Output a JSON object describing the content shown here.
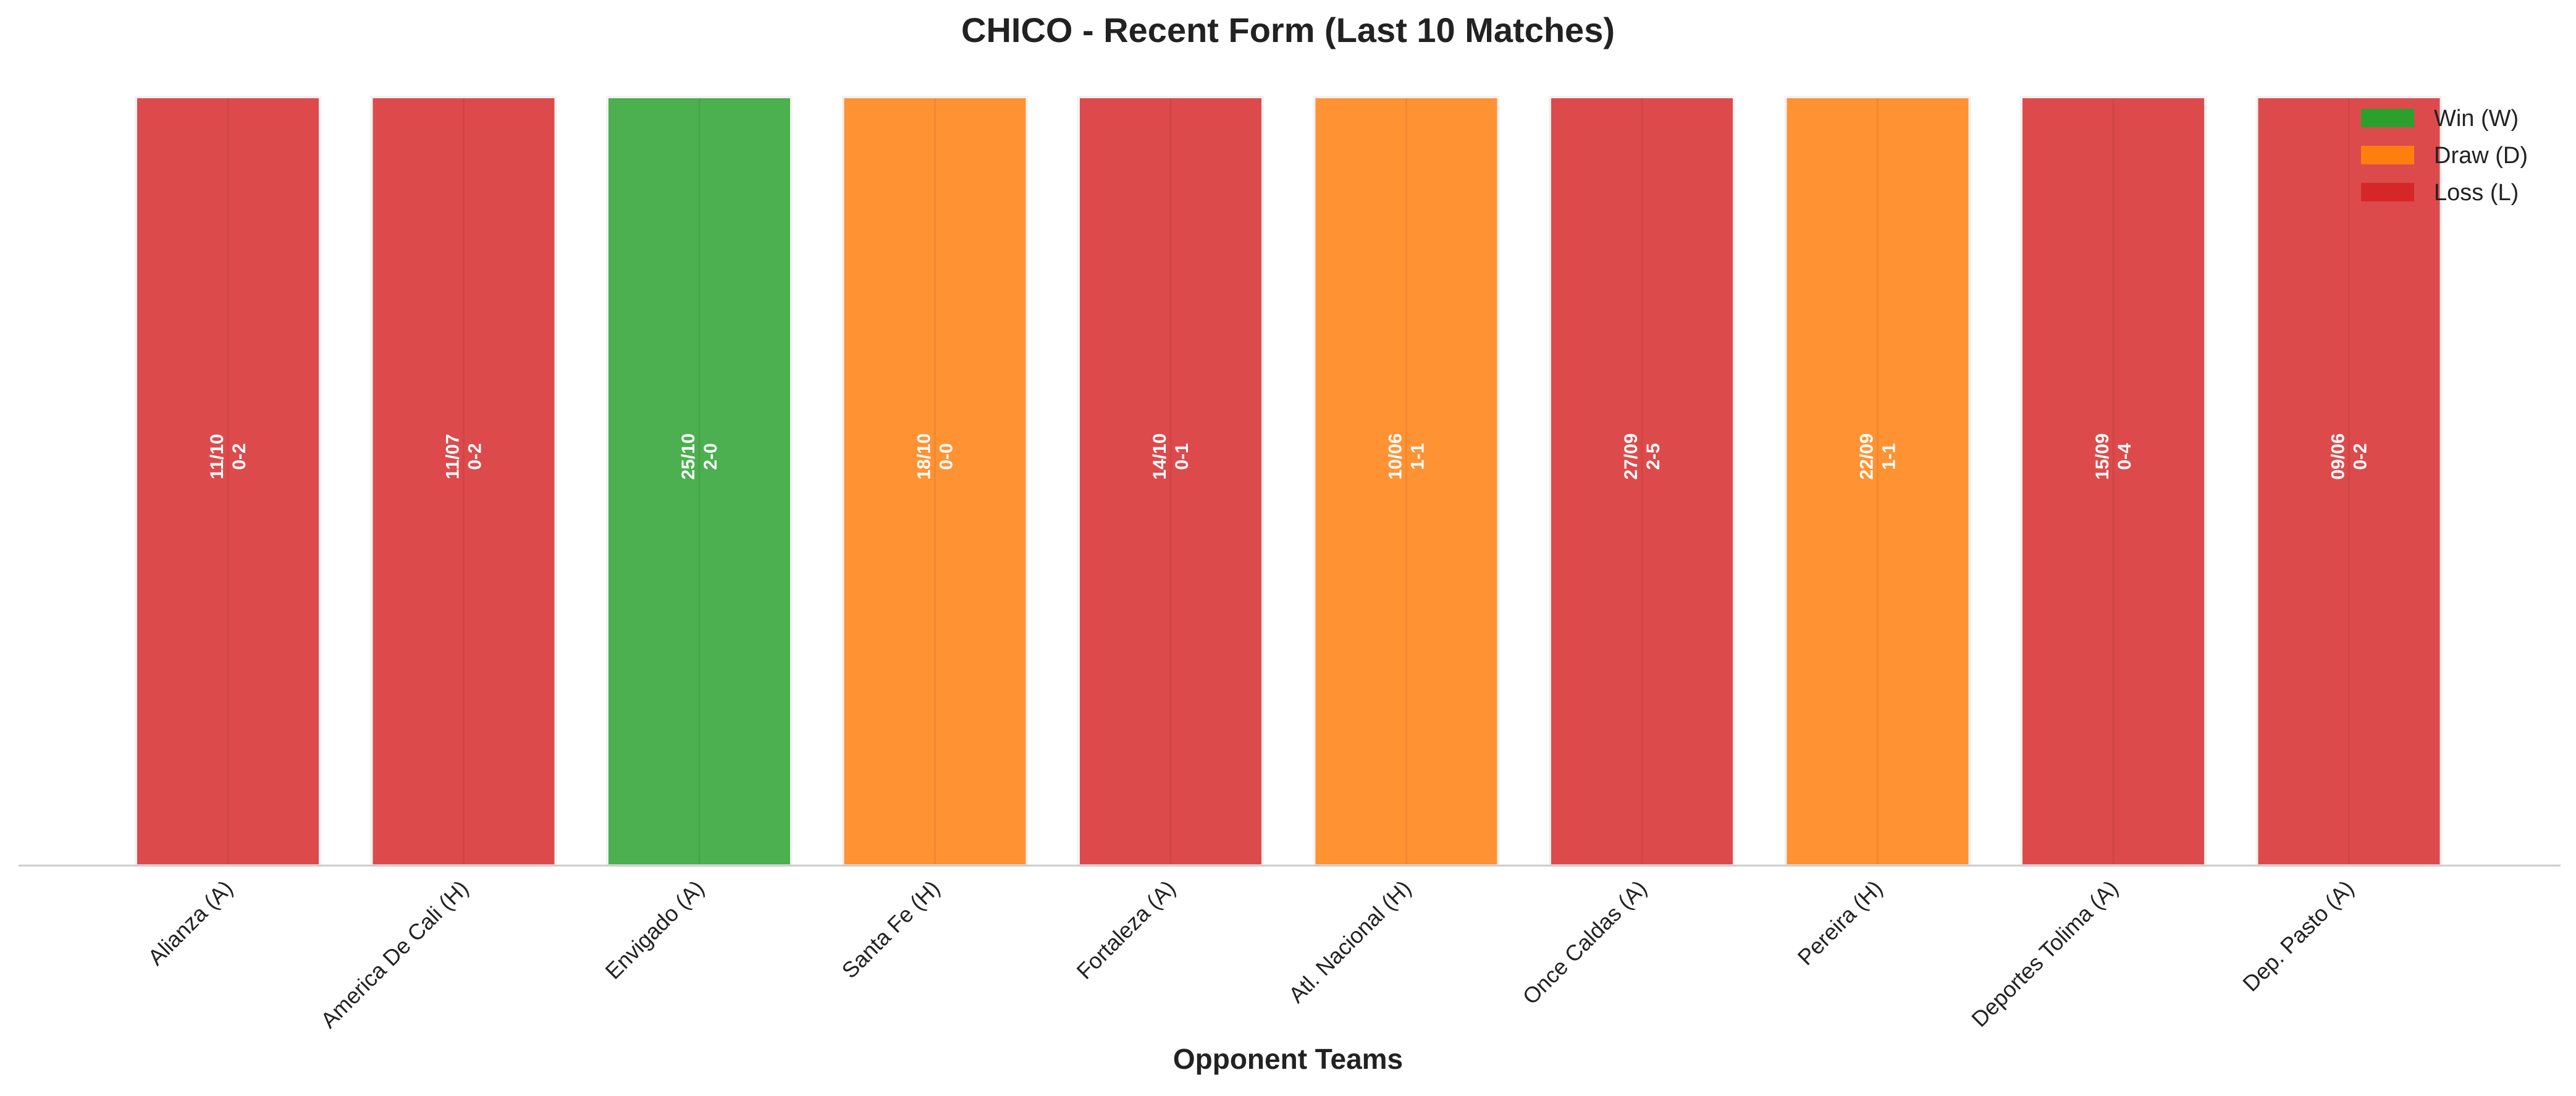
{
  "chart_data": {
    "type": "bar",
    "title": "CHICO - Recent Form (Last 10 Matches)",
    "xlabel": "Opponent Teams",
    "ylabel": "",
    "categories": [
      "Alianza (A)",
      "America De Cali (H)",
      "Envigado (A)",
      "Santa Fe (H)",
      "Fortaleza (A)",
      "Atl. Nacional (H)",
      "Once Caldas (A)",
      "Pereira (H)",
      "Deportes Tolima (A)",
      "Dep. Pasto (A)"
    ],
    "values": [
      1,
      1,
      1,
      1,
      1,
      1,
      1,
      1,
      1,
      1
    ],
    "results": [
      "L",
      "L",
      "W",
      "D",
      "L",
      "D",
      "L",
      "D",
      "L",
      "L"
    ],
    "dates": [
      "11/10",
      "11/07",
      "25/10",
      "18/10",
      "14/10",
      "10/06",
      "27/09",
      "22/09",
      "15/09",
      "09/06"
    ],
    "scores": [
      "0-2",
      "0-2",
      "2-0",
      "0-0",
      "0-1",
      "1-1",
      "2-5",
      "1-1",
      "0-4",
      "0-2"
    ],
    "ylim": [
      0,
      1
    ],
    "grid": false,
    "legend_position": "top-right",
    "legend": [
      {
        "key": "W",
        "label": "Win (W)",
        "color": "#2ca02c"
      },
      {
        "key": "D",
        "label": "Draw (D)",
        "color": "#ff7f0e"
      },
      {
        "key": "L",
        "label": "Loss (L)",
        "color": "#d62728"
      }
    ],
    "colors": {
      "W": "#4caf50",
      "D": "#ff9233",
      "L": "#dd4a4b",
      "axis": "#cccccc",
      "text": "#222222",
      "label_on_bar": "#ffffff"
    }
  }
}
